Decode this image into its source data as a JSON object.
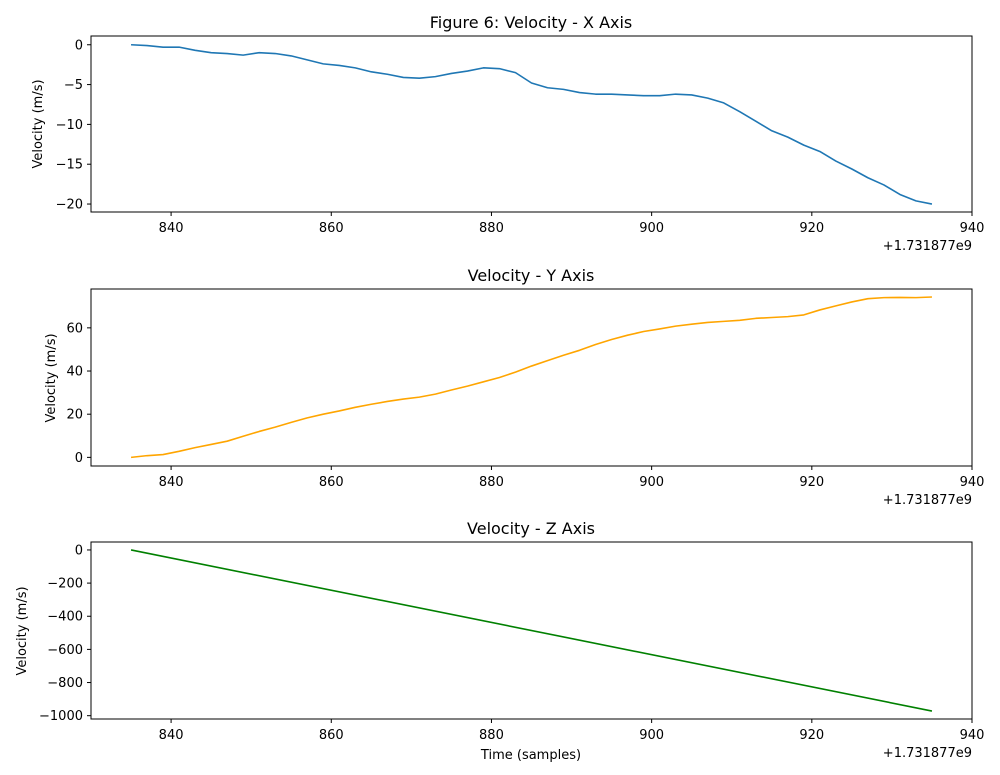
{
  "chart_data": [
    {
      "type": "line",
      "title": "Figure 6: Velocity - X Axis",
      "xlabel": "",
      "ylabel": "Velocity (m/s)",
      "x_offset_label": "+1.731877e9",
      "xlim": [
        830,
        940
      ],
      "ylim": [
        -21,
        1.1
      ],
      "xticks": [
        "840",
        "860",
        "880",
        "900",
        "920",
        "940"
      ],
      "yticks": [
        "0",
        "−5",
        "−10",
        "−15",
        "−20"
      ],
      "xtick_values": [
        840,
        860,
        880,
        900,
        920,
        940
      ],
      "ytick_values": [
        0,
        -5,
        -10,
        -15,
        -20
      ],
      "grid": false,
      "series": [
        {
          "color": "#1f77b4",
          "x": [
            835,
            837,
            839,
            841,
            843,
            845,
            847,
            849,
            851,
            853,
            855,
            857,
            859,
            861,
            863,
            865,
            867,
            869,
            871,
            873,
            875,
            877,
            879,
            881,
            883,
            885,
            887,
            889,
            891,
            893,
            895,
            897,
            899,
            901,
            903,
            905,
            907,
            909,
            911,
            913,
            915,
            917,
            919,
            921,
            923,
            925,
            927,
            929,
            931,
            933,
            935
          ],
          "y": [
            0.0,
            -0.1,
            -0.3,
            -0.3,
            -0.7,
            -1.0,
            -1.1,
            -1.3,
            -1.0,
            -1.1,
            -1.4,
            -1.9,
            -2.4,
            -2.6,
            -2.9,
            -3.4,
            -3.7,
            -4.1,
            -4.2,
            -4.0,
            -3.6,
            -3.3,
            -2.9,
            -3.0,
            -3.5,
            -4.8,
            -5.4,
            -5.6,
            -6.0,
            -6.2,
            -6.2,
            -6.3,
            -6.4,
            -6.4,
            -6.2,
            -6.3,
            -6.7,
            -7.3,
            -8.4,
            -9.6,
            -10.8,
            -11.6,
            -12.6,
            -13.4,
            -14.6,
            -15.6,
            -16.7,
            -17.6,
            -18.8,
            -19.6,
            -20.0
          ]
        }
      ]
    },
    {
      "type": "line",
      "title": "Velocity - Y Axis",
      "xlabel": "",
      "ylabel": "Velocity (m/s)",
      "x_offset_label": "+1.731877e9",
      "xlim": [
        830,
        940
      ],
      "ylim": [
        -4,
        78
      ],
      "xticks": [
        "840",
        "860",
        "880",
        "900",
        "920",
        "940"
      ],
      "yticks": [
        "0",
        "20",
        "40",
        "60"
      ],
      "xtick_values": [
        840,
        860,
        880,
        900,
        920,
        940
      ],
      "ytick_values": [
        0,
        20,
        40,
        60
      ],
      "grid": false,
      "series": [
        {
          "color": "#ffa500",
          "x": [
            835,
            837,
            839,
            841,
            843,
            845,
            847,
            849,
            851,
            853,
            855,
            857,
            859,
            861,
            863,
            865,
            867,
            869,
            871,
            873,
            875,
            877,
            879,
            881,
            883,
            885,
            887,
            889,
            891,
            893,
            895,
            897,
            899,
            901,
            903,
            905,
            907,
            909,
            911,
            913,
            915,
            917,
            919,
            921,
            923,
            925,
            927,
            929,
            931,
            933,
            935
          ],
          "y": [
            0.0,
            0.8,
            1.3,
            2.8,
            4.5,
            6.0,
            7.5,
            9.8,
            12.0,
            14.0,
            16.2,
            18.3,
            20.0,
            21.5,
            23.2,
            24.6,
            25.9,
            27.0,
            27.9,
            29.3,
            31.2,
            33.0,
            35.0,
            37.0,
            39.5,
            42.3,
            44.8,
            47.3,
            49.6,
            52.3,
            54.6,
            56.6,
            58.3,
            59.5,
            60.8,
            61.7,
            62.5,
            63.0,
            63.5,
            64.4,
            64.8,
            65.2,
            66.0,
            68.3,
            70.2,
            72.0,
            73.5,
            74.0,
            74.1,
            74.0,
            74.3
          ]
        }
      ]
    },
    {
      "type": "line",
      "title": "Velocity - Z Axis",
      "xlabel": "Time (samples)",
      "ylabel": "Velocity (m/s)",
      "x_offset_label": "+1.731877e9",
      "xlim": [
        830,
        940
      ],
      "ylim": [
        -1020,
        48
      ],
      "xticks": [
        "840",
        "860",
        "880",
        "900",
        "920",
        "940"
      ],
      "yticks": [
        "0",
        "−200",
        "−400",
        "−600",
        "−800",
        "−1000"
      ],
      "xtick_values": [
        840,
        860,
        880,
        900,
        920,
        940
      ],
      "ytick_values": [
        0,
        -200,
        -400,
        -600,
        -800,
        -1000
      ],
      "grid": false,
      "series": [
        {
          "color": "#008000",
          "x": [
            835,
            935
          ],
          "y": [
            0,
            -972
          ]
        }
      ]
    }
  ]
}
